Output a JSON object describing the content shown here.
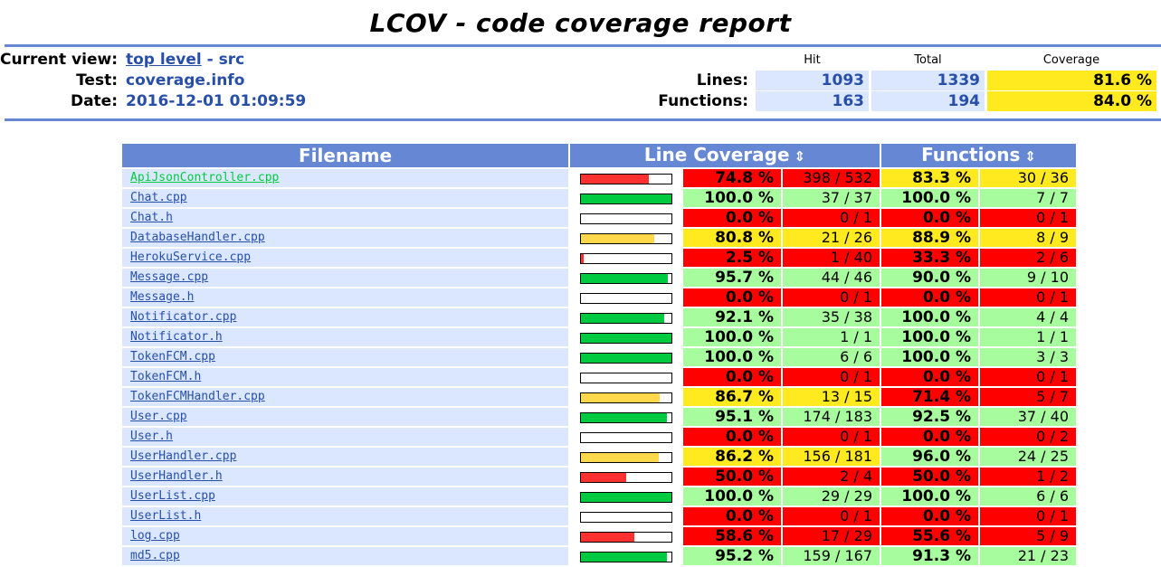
{
  "header": {
    "title": "LCOV - code coverage report",
    "current_view_label": "Current view:",
    "current_view_link": "top level",
    "current_view_rest": "- src",
    "test_label": "Test:",
    "test_value": "coverage.info",
    "date_label": "Date:",
    "date_value": "2016-12-01 01:09:59",
    "col_hit": "Hit",
    "col_total": "Total",
    "col_coverage": "Coverage",
    "lines_label": "Lines:",
    "lines_hit": "1093",
    "lines_total": "1339",
    "lines_cov": "81.6 %",
    "functions_label": "Functions:",
    "functions_hit": "163",
    "functions_total": "194",
    "functions_cov": "84.0 %"
  },
  "table": {
    "col_filename": "Filename",
    "col_line_coverage": "Line Coverage",
    "col_functions": "Functions",
    "sort_icon": "⇕"
  },
  "colors": {
    "hi": "#a7fc9d",
    "med": "#ffea20",
    "lo": "#ff0000",
    "bar_hi": "#00cb40",
    "bar_med": "#ffd84c",
    "bar_lo": "#ff3030"
  },
  "files": [
    {
      "name": "ApiJsonController.cpp",
      "visited": true,
      "line_pct": "74.8 %",
      "line_frac": 0.748,
      "line_cnt": "398 / 532",
      "line_level": "lo",
      "fn_pct": "83.3 %",
      "fn_cnt": "30 / 36",
      "fn_level": "med"
    },
    {
      "name": "Chat.cpp",
      "line_pct": "100.0 %",
      "line_frac": 1.0,
      "line_cnt": "37 / 37",
      "line_level": "hi",
      "fn_pct": "100.0 %",
      "fn_cnt": "7 / 7",
      "fn_level": "hi"
    },
    {
      "name": "Chat.h",
      "line_pct": "0.0 %",
      "line_frac": 0,
      "line_cnt": "0 / 1",
      "line_level": "lo",
      "fn_pct": "0.0 %",
      "fn_cnt": "0 / 1",
      "fn_level": "lo"
    },
    {
      "name": "DatabaseHandler.cpp",
      "line_pct": "80.8 %",
      "line_frac": 0.808,
      "line_cnt": "21 / 26",
      "line_level": "med",
      "fn_pct": "88.9 %",
      "fn_cnt": "8 / 9",
      "fn_level": "med"
    },
    {
      "name": "HerokuService.cpp",
      "line_pct": "2.5 %",
      "line_frac": 0.025,
      "line_cnt": "1 / 40",
      "line_level": "lo",
      "fn_pct": "33.3 %",
      "fn_cnt": "2 / 6",
      "fn_level": "lo"
    },
    {
      "name": "Message.cpp",
      "line_pct": "95.7 %",
      "line_frac": 0.957,
      "line_cnt": "44 / 46",
      "line_level": "hi",
      "fn_pct": "90.0 %",
      "fn_cnt": "9 / 10",
      "fn_level": "hi"
    },
    {
      "name": "Message.h",
      "line_pct": "0.0 %",
      "line_frac": 0,
      "line_cnt": "0 / 1",
      "line_level": "lo",
      "fn_pct": "0.0 %",
      "fn_cnt": "0 / 1",
      "fn_level": "lo"
    },
    {
      "name": "Notificator.cpp",
      "line_pct": "92.1 %",
      "line_frac": 0.921,
      "line_cnt": "35 / 38",
      "line_level": "hi",
      "fn_pct": "100.0 %",
      "fn_cnt": "4 / 4",
      "fn_level": "hi"
    },
    {
      "name": "Notificator.h",
      "line_pct": "100.0 %",
      "line_frac": 1.0,
      "line_cnt": "1 / 1",
      "line_level": "hi",
      "fn_pct": "100.0 %",
      "fn_cnt": "1 / 1",
      "fn_level": "hi"
    },
    {
      "name": "TokenFCM.cpp",
      "line_pct": "100.0 %",
      "line_frac": 1.0,
      "line_cnt": "6 / 6",
      "line_level": "hi",
      "fn_pct": "100.0 %",
      "fn_cnt": "3 / 3",
      "fn_level": "hi"
    },
    {
      "name": "TokenFCM.h",
      "line_pct": "0.0 %",
      "line_frac": 0,
      "line_cnt": "0 / 1",
      "line_level": "lo",
      "fn_pct": "0.0 %",
      "fn_cnt": "0 / 1",
      "fn_level": "lo"
    },
    {
      "name": "TokenFCMHandler.cpp",
      "line_pct": "86.7 %",
      "line_frac": 0.867,
      "line_cnt": "13 / 15",
      "line_level": "med",
      "fn_pct": "71.4 %",
      "fn_cnt": "5 / 7",
      "fn_level": "lo"
    },
    {
      "name": "User.cpp",
      "line_pct": "95.1 %",
      "line_frac": 0.951,
      "line_cnt": "174 / 183",
      "line_level": "hi",
      "fn_pct": "92.5 %",
      "fn_cnt": "37 / 40",
      "fn_level": "hi"
    },
    {
      "name": "User.h",
      "line_pct": "0.0 %",
      "line_frac": 0,
      "line_cnt": "0 / 1",
      "line_level": "lo",
      "fn_pct": "0.0 %",
      "fn_cnt": "0 / 2",
      "fn_level": "lo"
    },
    {
      "name": "UserHandler.cpp",
      "line_pct": "86.2 %",
      "line_frac": 0.862,
      "line_cnt": "156 / 181",
      "line_level": "med",
      "fn_pct": "96.0 %",
      "fn_cnt": "24 / 25",
      "fn_level": "hi"
    },
    {
      "name": "UserHandler.h",
      "line_pct": "50.0 %",
      "line_frac": 0.5,
      "line_cnt": "2 / 4",
      "line_level": "lo",
      "fn_pct": "50.0 %",
      "fn_cnt": "1 / 2",
      "fn_level": "lo"
    },
    {
      "name": "UserList.cpp",
      "line_pct": "100.0 %",
      "line_frac": 1.0,
      "line_cnt": "29 / 29",
      "line_level": "hi",
      "fn_pct": "100.0 %",
      "fn_cnt": "6 / 6",
      "fn_level": "hi"
    },
    {
      "name": "UserList.h",
      "line_pct": "0.0 %",
      "line_frac": 0,
      "line_cnt": "0 / 1",
      "line_level": "lo",
      "fn_pct": "0.0 %",
      "fn_cnt": "0 / 1",
      "fn_level": "lo"
    },
    {
      "name": "log.cpp",
      "line_pct": "58.6 %",
      "line_frac": 0.586,
      "line_cnt": "17 / 29",
      "line_level": "lo",
      "fn_pct": "55.6 %",
      "fn_cnt": "5 / 9",
      "fn_level": "lo"
    },
    {
      "name": "md5.cpp",
      "line_pct": "95.2 %",
      "line_frac": 0.952,
      "line_cnt": "159 / 167",
      "line_level": "hi",
      "fn_pct": "91.3 %",
      "fn_cnt": "21 / 23",
      "fn_level": "hi"
    }
  ]
}
